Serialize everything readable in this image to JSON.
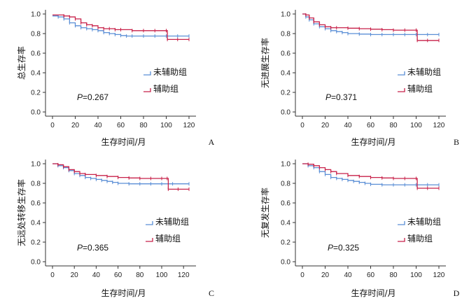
{
  "chart_data": [
    {
      "type": "line",
      "panel_label": "A",
      "ylabel": "总生存率",
      "xlabel": "生存时间/月",
      "xlim": [
        0,
        120
      ],
      "ylim": [
        0,
        1.0
      ],
      "xticks": [
        "0",
        "20",
        "40",
        "60",
        "80",
        "100",
        "120"
      ],
      "yticks": [
        "0.0",
        "0.2",
        "0.4",
        "0.6",
        "0.8",
        "1.0"
      ],
      "legend_placement": "center-right",
      "p_prefix": "P",
      "p_value": "=0.267",
      "series": [
        {
          "name": "未辅助组",
          "color": "#5b8fd6",
          "x": [
            0,
            5,
            10,
            15,
            20,
            25,
            30,
            35,
            40,
            45,
            50,
            55,
            60,
            65,
            70,
            80,
            90,
            100,
            110,
            120
          ],
          "y": [
            0.98,
            0.97,
            0.95,
            0.91,
            0.88,
            0.86,
            0.85,
            0.84,
            0.83,
            0.81,
            0.8,
            0.79,
            0.78,
            0.775,
            0.775,
            0.775,
            0.775,
            0.775,
            0.775,
            0.775
          ]
        },
        {
          "name": "辅助组",
          "color": "#c8224a",
          "x": [
            0,
            10,
            15,
            20,
            25,
            30,
            35,
            40,
            45,
            50,
            55,
            60,
            70,
            80,
            90,
            100,
            101,
            110,
            120
          ],
          "y": [
            0.99,
            0.98,
            0.97,
            0.95,
            0.91,
            0.89,
            0.88,
            0.86,
            0.85,
            0.85,
            0.84,
            0.84,
            0.83,
            0.83,
            0.83,
            0.83,
            0.74,
            0.74,
            0.74
          ]
        }
      ]
    },
    {
      "type": "line",
      "panel_label": "B",
      "ylabel": "无进展生存率",
      "xlabel": "生存时间/月",
      "xlim": [
        0,
        120
      ],
      "ylim": [
        0,
        1.0
      ],
      "xticks": [
        "0",
        "20",
        "40",
        "60",
        "80",
        "100",
        "120"
      ],
      "yticks": [
        "0.0",
        "0.2",
        "0.4",
        "0.6",
        "0.8",
        "1.0"
      ],
      "legend_placement": "center-right",
      "p_prefix": "P",
      "p_value": "=0.371",
      "series": [
        {
          "name": "未辅助组",
          "color": "#5b8fd6",
          "x": [
            0,
            3,
            6,
            10,
            15,
            20,
            25,
            30,
            35,
            40,
            50,
            60,
            70,
            80,
            90,
            100,
            110,
            120
          ],
          "y": [
            1.0,
            0.97,
            0.94,
            0.9,
            0.87,
            0.85,
            0.83,
            0.82,
            0.81,
            0.8,
            0.795,
            0.79,
            0.79,
            0.79,
            0.79,
            0.79,
            0.79,
            0.79
          ]
        },
        {
          "name": "辅助组",
          "color": "#c8224a",
          "x": [
            0,
            3,
            6,
            10,
            15,
            20,
            25,
            30,
            40,
            50,
            60,
            70,
            80,
            90,
            100,
            101,
            110,
            120
          ],
          "y": [
            1.0,
            0.99,
            0.96,
            0.92,
            0.89,
            0.87,
            0.86,
            0.86,
            0.855,
            0.85,
            0.845,
            0.84,
            0.835,
            0.835,
            0.835,
            0.73,
            0.73,
            0.73
          ]
        }
      ]
    },
    {
      "type": "line",
      "panel_label": "C",
      "ylabel": "无远处转移生存率",
      "xlabel": "生存时间/月",
      "xlim": [
        0,
        125
      ],
      "ylim": [
        0,
        1.0
      ],
      "xticks": [
        "0",
        "20",
        "40",
        "60",
        "80",
        "100",
        "120"
      ],
      "yticks": [
        "0.0",
        "0.2",
        "0.4",
        "0.6",
        "0.8",
        "1.0"
      ],
      "legend_placement": "center-right",
      "p_prefix": "P",
      "p_value": "=0.365",
      "series": [
        {
          "name": "未辅助组",
          "color": "#5b8fd6",
          "x": [
            0,
            5,
            10,
            15,
            20,
            25,
            30,
            35,
            40,
            45,
            50,
            55,
            60,
            70,
            80,
            90,
            100,
            110,
            125
          ],
          "y": [
            1.0,
            0.98,
            0.96,
            0.93,
            0.9,
            0.88,
            0.86,
            0.85,
            0.84,
            0.83,
            0.82,
            0.81,
            0.8,
            0.795,
            0.795,
            0.795,
            0.795,
            0.795,
            0.795
          ]
        },
        {
          "name": "辅助组",
          "color": "#c8224a",
          "x": [
            0,
            5,
            10,
            15,
            20,
            25,
            30,
            40,
            50,
            60,
            70,
            80,
            90,
            100,
            105,
            106,
            115,
            125
          ],
          "y": [
            1.0,
            0.99,
            0.97,
            0.94,
            0.92,
            0.9,
            0.89,
            0.88,
            0.87,
            0.86,
            0.855,
            0.85,
            0.85,
            0.85,
            0.85,
            0.74,
            0.74,
            0.74
          ]
        }
      ]
    },
    {
      "type": "line",
      "panel_label": "D",
      "ylabel": "无复发生存率",
      "xlabel": "生存时间/月",
      "xlim": [
        0,
        120
      ],
      "ylim": [
        0,
        1.0
      ],
      "xticks": [
        "0",
        "20",
        "40",
        "60",
        "80",
        "100",
        "120"
      ],
      "yticks": [
        "0.0",
        "0.2",
        "0.4",
        "0.6",
        "0.8",
        "1.0"
      ],
      "legend_placement": "center-right",
      "p_prefix": "P",
      "p_value": "=0.325",
      "series": [
        {
          "name": "未辅助组",
          "color": "#5b8fd6",
          "x": [
            0,
            5,
            10,
            15,
            20,
            25,
            30,
            35,
            40,
            45,
            50,
            55,
            60,
            70,
            80,
            90,
            100,
            110,
            120
          ],
          "y": [
            1.0,
            0.98,
            0.96,
            0.92,
            0.89,
            0.86,
            0.85,
            0.84,
            0.83,
            0.82,
            0.81,
            0.8,
            0.79,
            0.785,
            0.785,
            0.785,
            0.785,
            0.785,
            0.785
          ]
        },
        {
          "name": "辅助组",
          "color": "#c8224a",
          "x": [
            0,
            5,
            10,
            15,
            20,
            25,
            30,
            40,
            50,
            60,
            70,
            80,
            90,
            100,
            101,
            110,
            120
          ],
          "y": [
            1.0,
            0.995,
            0.98,
            0.96,
            0.94,
            0.92,
            0.9,
            0.88,
            0.87,
            0.86,
            0.855,
            0.85,
            0.85,
            0.85,
            0.75,
            0.75,
            0.75
          ]
        }
      ]
    }
  ]
}
